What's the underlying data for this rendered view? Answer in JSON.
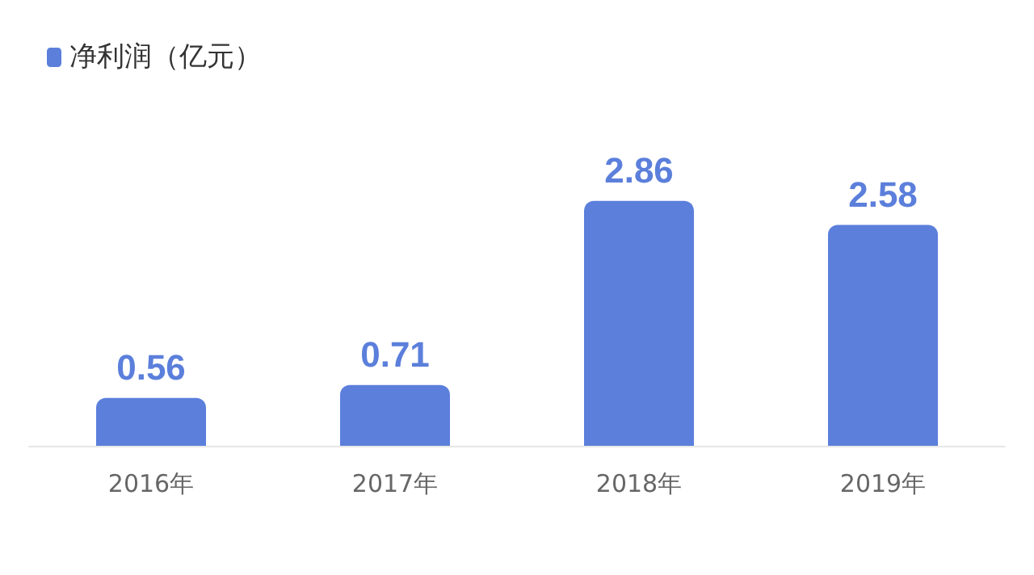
{
  "chart_data": {
    "type": "bar",
    "categories": [
      "2016年",
      "2017年",
      "2018年",
      "2019年"
    ],
    "series": [
      {
        "name": "净利润（亿元）",
        "color": "#5b7fdb",
        "values": [
          0.56,
          0.71,
          2.86,
          2.58
        ]
      }
    ],
    "data_labels": true,
    "legend": "top left"
  }
}
